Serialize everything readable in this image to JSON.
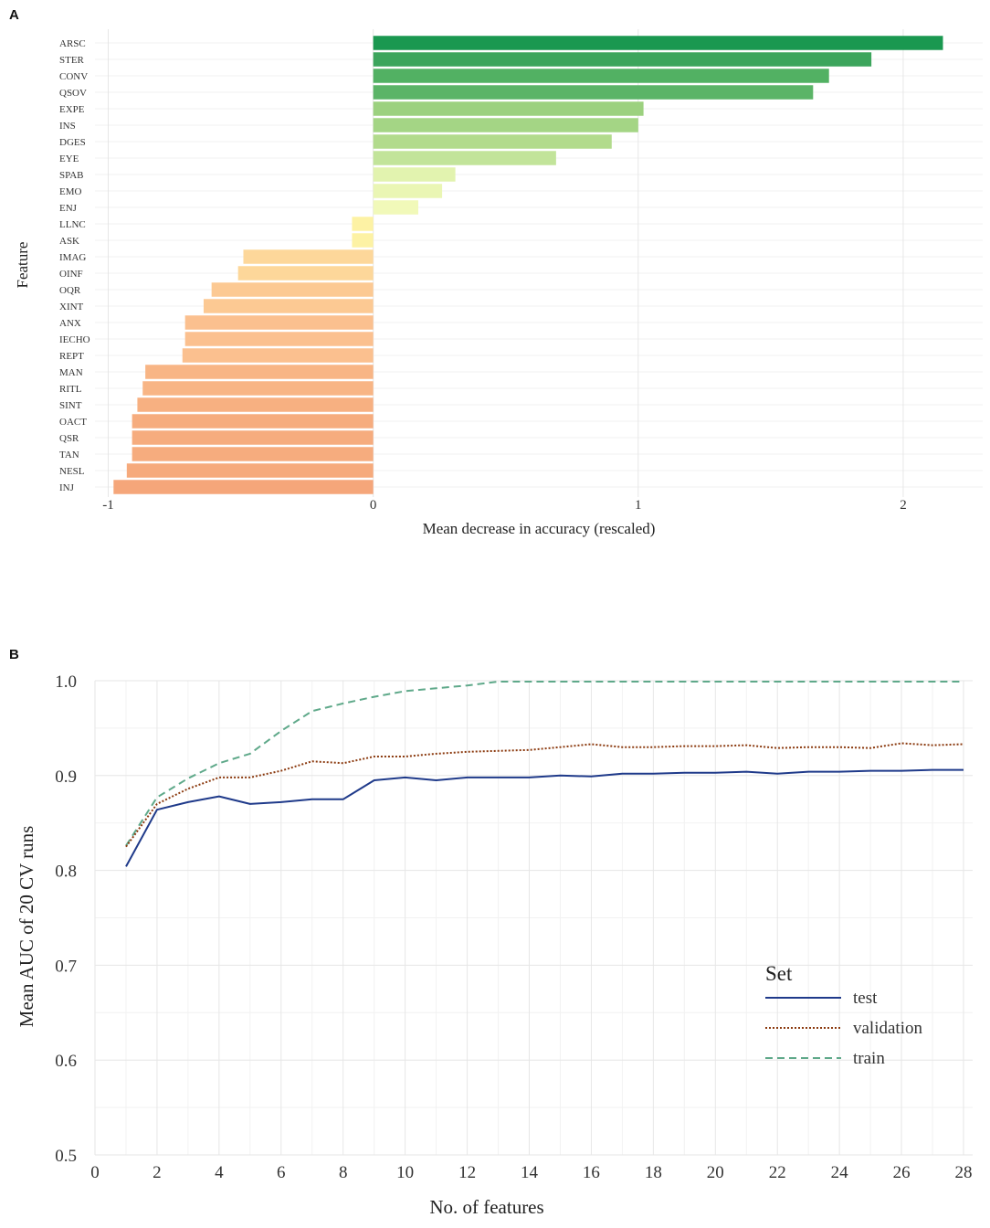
{
  "panels": {
    "a": "A",
    "b": "B"
  },
  "chart_data": [
    {
      "type": "bar",
      "orientation": "horizontal",
      "categories": [
        "ARSC",
        "STER",
        "CONV",
        "QSOV",
        "EXPE",
        "INS",
        "DGES",
        "EYE",
        "SPAB",
        "EMO",
        "ENJ",
        "LLNC",
        "ASK",
        "IMAG",
        "OINF",
        "OQR",
        "XINT",
        "ANX",
        "IECHO",
        "REPT",
        "MAN",
        "RITL",
        "SINT",
        "OACT",
        "QSR",
        "TAN",
        "NESL",
        "INJ"
      ],
      "values": [
        2.15,
        1.88,
        1.72,
        1.66,
        1.02,
        1.0,
        0.9,
        0.69,
        0.31,
        0.26,
        0.17,
        -0.08,
        -0.08,
        -0.49,
        -0.51,
        -0.61,
        -0.64,
        -0.71,
        -0.71,
        -0.72,
        -0.86,
        -0.87,
        -0.89,
        -0.91,
        -0.91,
        -0.91,
        -0.93,
        -0.98
      ],
      "colors": [
        "#1a9850",
        "#3ca55c",
        "#52b163",
        "#5bb467",
        "#9cd17f",
        "#a4d585",
        "#b2db8c",
        "#c2e49a",
        "#e2f3af",
        "#eaf6b4",
        "#f1f9b9",
        "#fdf2a4",
        "#fdf2a4",
        "#fdd79a",
        "#fdd79a",
        "#fcc993",
        "#fcc993",
        "#fbc08f",
        "#fbc08f",
        "#fbc08f",
        "#f8b585",
        "#f8b585",
        "#f7b081",
        "#f6ac7e",
        "#f6ac7e",
        "#f6ac7e",
        "#f6aa7c",
        "#f5a67a"
      ],
      "title": "",
      "xlabel": "Mean decrease in accuracy (rescaled)",
      "ylabel": "Feature",
      "xlim": [
        -1.05,
        2.3
      ],
      "xticks": [
        -1,
        0,
        1,
        2
      ],
      "xtick_labels": [
        "-1",
        "0",
        "1",
        "2"
      ]
    },
    {
      "type": "line",
      "x": [
        1,
        2,
        3,
        4,
        5,
        6,
        7,
        8,
        9,
        10,
        11,
        12,
        13,
        14,
        15,
        16,
        17,
        18,
        19,
        20,
        21,
        22,
        23,
        24,
        25,
        26,
        27,
        28
      ],
      "series": [
        {
          "name": "test",
          "color": "#1f3a8a",
          "dash": "solid",
          "values": [
            0.804,
            0.864,
            0.872,
            0.878,
            0.87,
            0.872,
            0.875,
            0.875,
            0.895,
            0.898,
            0.895,
            0.898,
            0.898,
            0.898,
            0.9,
            0.899,
            0.902,
            0.902,
            0.903,
            0.903,
            0.904,
            0.902,
            0.904,
            0.904,
            0.905,
            0.905,
            0.906,
            0.906
          ]
        },
        {
          "name": "validation",
          "color": "#8b3a0f",
          "dash": "dotted",
          "values": [
            0.825,
            0.87,
            0.886,
            0.898,
            0.898,
            0.905,
            0.915,
            0.913,
            0.92,
            0.92,
            0.923,
            0.925,
            0.926,
            0.927,
            0.93,
            0.933,
            0.93,
            0.93,
            0.931,
            0.931,
            0.932,
            0.929,
            0.93,
            0.93,
            0.929,
            0.934,
            0.932,
            0.933
          ]
        },
        {
          "name": "train",
          "color": "#5fa98a",
          "dash": "dashed",
          "values": [
            0.826,
            0.877,
            0.897,
            0.913,
            0.923,
            0.947,
            0.968,
            0.976,
            0.983,
            0.989,
            0.992,
            0.995,
            0.999,
            0.999,
            0.999,
            0.999,
            0.999,
            0.999,
            0.999,
            0.999,
            0.999,
            0.999,
            0.999,
            0.999,
            0.999,
            0.999,
            0.999,
            0.999
          ]
        }
      ],
      "title": "",
      "xlabel": "No. of features",
      "ylabel": "Mean  AUC of 20 CV runs",
      "xlim": [
        0,
        28
      ],
      "ylim": [
        0.5,
        1.0
      ],
      "xticks": [
        0,
        2,
        4,
        6,
        8,
        10,
        12,
        14,
        16,
        18,
        20,
        22,
        24,
        26,
        28
      ],
      "yticks": [
        0.5,
        0.6,
        0.7,
        0.8,
        0.9,
        1.0
      ],
      "ytick_labels": [
        "0.5",
        "0.6",
        "0.7",
        "0.8",
        "0.9",
        "1.0"
      ],
      "legend": {
        "title": "Set",
        "entries": [
          "test",
          "validation",
          "train"
        ],
        "position": "right"
      }
    }
  ]
}
